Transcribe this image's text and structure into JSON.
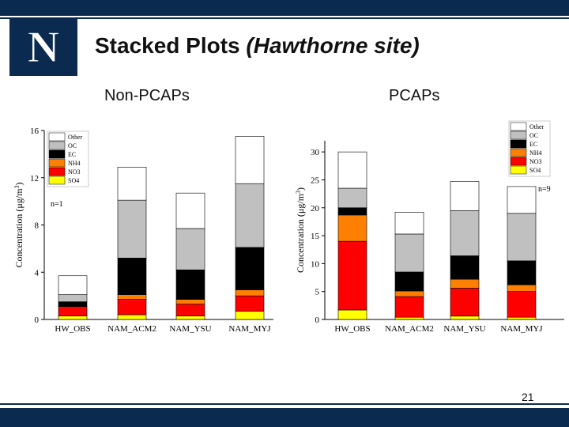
{
  "slide": {
    "title_main": "Stacked Plots ",
    "title_italic": "(Hawthorne site)",
    "left_heading": "Non-PCAPs",
    "right_heading": "PCAPs",
    "page_number": "21",
    "logo_letter": "N"
  },
  "colors": {
    "navy": "#0b2a4f",
    "Other": "#ffffff",
    "OC": "#c0c0c0",
    "EC": "#000000",
    "NH4": "#ff8000",
    "NO3": "#ff0000",
    "SO4": "#ffff00"
  },
  "chart_data": [
    {
      "type": "bar",
      "stacked": true,
      "title": "Non-PCAPs",
      "categories": [
        "HW_OBS",
        "NAM_ACM2",
        "NAM_YSU",
        "NAM_MYJ"
      ],
      "series": [
        {
          "name": "SO4",
          "values": [
            0.3,
            0.4,
            0.3,
            0.7
          ]
        },
        {
          "name": "NO3",
          "values": [
            0.8,
            1.3,
            1.0,
            1.3
          ]
        },
        {
          "name": "NH4",
          "values": [
            0.0,
            0.4,
            0.4,
            0.5
          ]
        },
        {
          "name": "EC",
          "values": [
            0.4,
            3.1,
            2.5,
            3.6
          ]
        },
        {
          "name": "OC",
          "values": [
            0.6,
            4.9,
            3.5,
            5.4
          ]
        },
        {
          "name": "Other",
          "values": [
            1.6,
            2.8,
            3.0,
            4.0
          ]
        }
      ],
      "xlabel": "",
      "ylabel_parts": [
        "Concentration (",
        "μ",
        "g/m",
        "3",
        ")"
      ],
      "ylim": [
        0,
        16
      ],
      "yticks": [
        "0",
        "4",
        "8",
        "12",
        "16"
      ],
      "yticks_values": [
        0,
        4,
        8,
        12,
        16
      ],
      "annotation": "n=1",
      "legend_placement": "top-left",
      "legend_order": [
        "Other",
        "OC",
        "EC",
        "NH4",
        "NO3",
        "SO4"
      ]
    },
    {
      "type": "bar",
      "stacked": true,
      "title": "PCAPs",
      "categories": [
        "HW_OBS",
        "NAM_ACM2",
        "NAM_YSU",
        "NAM_MYJ"
      ],
      "series": [
        {
          "name": "SO4",
          "values": [
            1.7,
            0.4,
            0.6,
            0.4
          ]
        },
        {
          "name": "NO3",
          "values": [
            12.3,
            3.7,
            5.0,
            4.6
          ]
        },
        {
          "name": "NH4",
          "values": [
            4.7,
            1.0,
            1.6,
            1.2
          ]
        },
        {
          "name": "EC",
          "values": [
            1.3,
            3.4,
            4.2,
            4.3
          ]
        },
        {
          "name": "OC",
          "values": [
            3.5,
            6.8,
            8.1,
            8.5
          ]
        },
        {
          "name": "Other",
          "values": [
            6.5,
            3.9,
            5.2,
            4.8
          ]
        }
      ],
      "xlabel": "",
      "ylabel_parts": [
        "Concentration (",
        "μ",
        "g/m",
        "3",
        ")"
      ],
      "ylim": [
        0,
        32
      ],
      "yticks": [
        "0",
        "5",
        "10",
        "15",
        "20",
        "25",
        "30"
      ],
      "yticks_values": [
        0,
        5,
        10,
        15,
        20,
        25,
        30
      ],
      "annotation": "n=9",
      "legend_placement": "top-right",
      "legend_order": [
        "Other",
        "OC",
        "EC",
        "NH4",
        "NO3",
        "SO4"
      ]
    }
  ]
}
